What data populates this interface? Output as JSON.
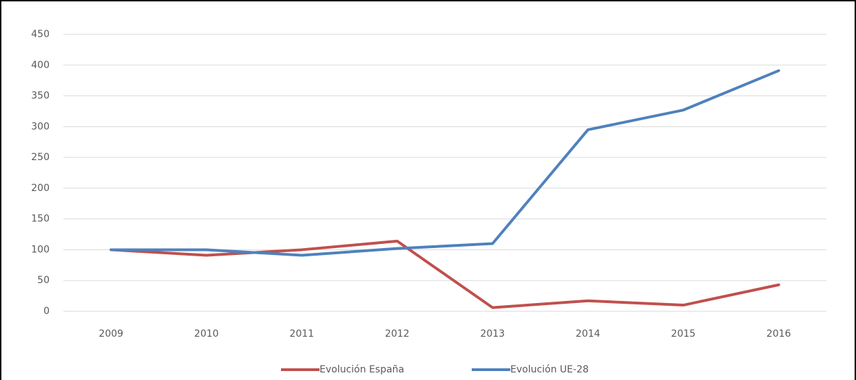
{
  "chart_data": {
    "type": "line",
    "categories": [
      "2009",
      "2010",
      "2011",
      "2012",
      "2013",
      "2014",
      "2015",
      "2016"
    ],
    "series": [
      {
        "name": "Evolución España",
        "color": "#c0504d",
        "values": [
          100,
          91,
          100,
          114,
          6,
          17,
          10,
          43
        ]
      },
      {
        "name": "Evolución UE-28",
        "color": "#4f81bd",
        "values": [
          100,
          100,
          91,
          102,
          110,
          295,
          327,
          391
        ]
      }
    ],
    "ylim": [
      0,
      450
    ],
    "yticks": [
      0,
      50,
      100,
      150,
      200,
      250,
      300,
      350,
      400,
      450
    ],
    "grid": true,
    "legend": "bottom"
  }
}
